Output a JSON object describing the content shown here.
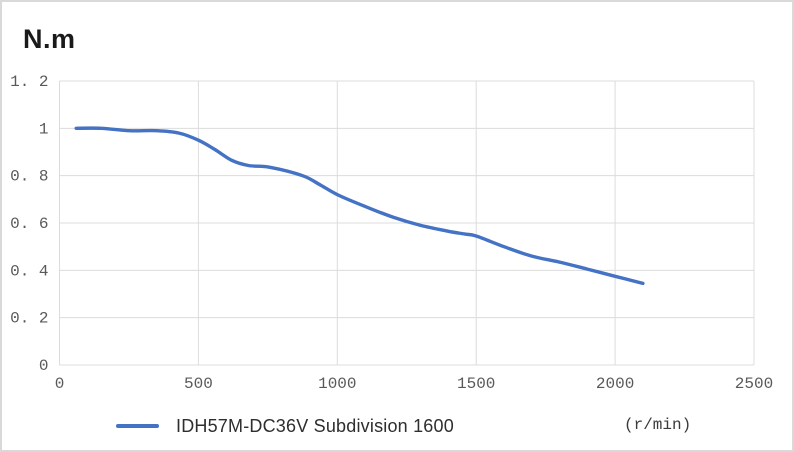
{
  "chart": {
    "title": "N.m",
    "series_label": "IDH57M-DC36V Subdivision 1600",
    "x_unit": "(r/min)"
  },
  "chart_data": {
    "type": "line",
    "title": "N.m",
    "ylabel": "N.m",
    "xlabel": "r/min",
    "x_unit_label": "(r/min)",
    "xlim": [
      0,
      2500
    ],
    "ylim": [
      0,
      1.2
    ],
    "grid": true,
    "legend_position": "bottom",
    "x_tick_values": [
      0,
      500,
      1000,
      1500,
      2000,
      2500
    ],
    "x_tick_labels": [
      "0",
      "500",
      "1000",
      "1500",
      "2000",
      "2500"
    ],
    "y_tick_values": [
      0,
      0.2,
      0.4,
      0.6,
      0.8,
      1.0,
      1.2
    ],
    "y_tick_labels": [
      "0",
      "0. 2",
      "0. 4",
      "0. 6",
      "0. 8",
      "1",
      "1. 2"
    ],
    "series": [
      {
        "name": "IDH57M-DC36V Subdivision 1600",
        "color": "#4472C4",
        "points": [
          [
            60,
            1.0
          ],
          [
            150,
            1.0
          ],
          [
            250,
            0.99
          ],
          [
            350,
            0.99
          ],
          [
            430,
            0.98
          ],
          [
            500,
            0.95
          ],
          [
            560,
            0.91
          ],
          [
            620,
            0.865
          ],
          [
            680,
            0.843
          ],
          [
            760,
            0.835
          ],
          [
            875,
            0.8
          ],
          [
            940,
            0.76
          ],
          [
            1000,
            0.72
          ],
          [
            1100,
            0.67
          ],
          [
            1200,
            0.625
          ],
          [
            1300,
            0.59
          ],
          [
            1400,
            0.565
          ],
          [
            1460,
            0.553
          ],
          [
            1500,
            0.545
          ],
          [
            1600,
            0.5
          ],
          [
            1700,
            0.46
          ],
          [
            1800,
            0.435
          ],
          [
            1900,
            0.405
          ],
          [
            2000,
            0.375
          ],
          [
            2100,
            0.345
          ]
        ]
      }
    ],
    "colors": {
      "line": "#4472C4",
      "grid": "#dcdcdc",
      "tick_text": "#595959",
      "title_text": "#1a1a1a",
      "legend_text": "#2e2e2e"
    }
  }
}
